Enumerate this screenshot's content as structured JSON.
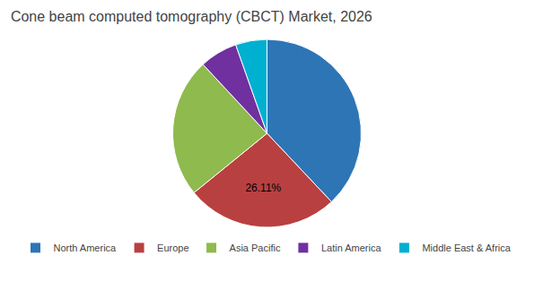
{
  "chart_data": {
    "type": "pie",
    "title": "Cone beam computed tomography (CBCT) Market, 2026",
    "categories": [
      "North America",
      "Europe",
      "Asia Pacific",
      "Latin America",
      "Middle East & Africa"
    ],
    "values": [
      38.0,
      26.11,
      24.0,
      6.5,
      5.39
    ],
    "colors": [
      "#2e75b6",
      "#b94040",
      "#8fba4e",
      "#7030a0",
      "#00b0d0"
    ],
    "data_labels": true,
    "value_labels": [
      null,
      "26.11%",
      null,
      null,
      null
    ],
    "legend": "bottom"
  }
}
